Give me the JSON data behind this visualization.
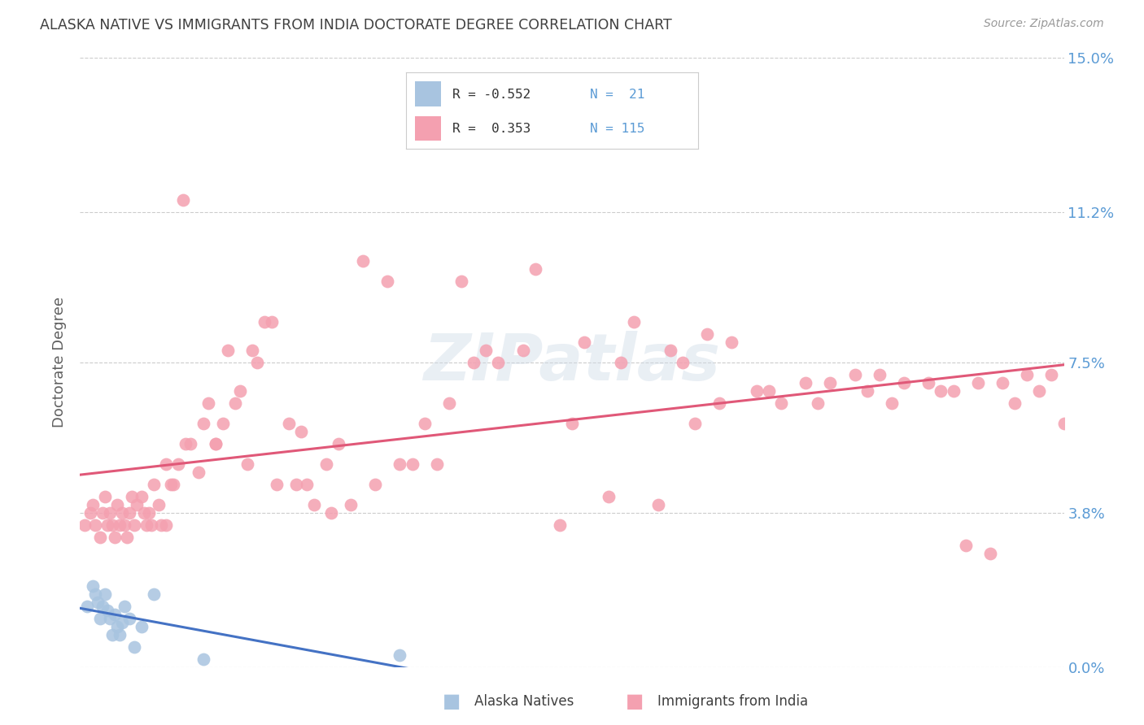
{
  "title": "ALASKA NATIVE VS IMMIGRANTS FROM INDIA DOCTORATE DEGREE CORRELATION CHART",
  "source": "Source: ZipAtlas.com",
  "ylabel": "Doctorate Degree",
  "ytick_values": [
    0.0,
    3.8,
    7.5,
    11.2,
    15.0
  ],
  "ytick_labels": [
    "0.0%",
    "3.8%",
    "7.5%",
    "11.2%",
    "15.0%"
  ],
  "xlim": [
    0.0,
    40.0
  ],
  "ylim": [
    0.0,
    15.0
  ],
  "color_alaska": "#a8c4e0",
  "color_india": "#f4a0b0",
  "color_line_alaska": "#4472c4",
  "color_line_india": "#e05878",
  "color_tick": "#5b9bd5",
  "watermark": "ZIPatlas",
  "alaska_x": [
    0.3,
    0.5,
    0.6,
    0.7,
    0.8,
    0.9,
    1.0,
    1.1,
    1.2,
    1.3,
    1.4,
    1.5,
    1.6,
    1.7,
    1.8,
    2.0,
    2.2,
    2.5,
    3.0,
    5.0,
    13.0
  ],
  "alaska_y": [
    1.5,
    2.0,
    1.8,
    1.6,
    1.2,
    1.5,
    1.8,
    1.4,
    1.2,
    0.8,
    1.3,
    1.0,
    0.8,
    1.1,
    1.5,
    1.2,
    0.5,
    1.0,
    1.8,
    0.2,
    0.3
  ],
  "india_x": [
    0.2,
    0.4,
    0.5,
    0.6,
    0.8,
    0.9,
    1.0,
    1.1,
    1.2,
    1.3,
    1.4,
    1.5,
    1.6,
    1.7,
    1.8,
    1.9,
    2.0,
    2.1,
    2.2,
    2.3,
    2.5,
    2.6,
    2.7,
    2.8,
    2.9,
    3.0,
    3.2,
    3.3,
    3.5,
    3.7,
    3.8,
    4.0,
    4.3,
    4.5,
    4.8,
    5.0,
    5.2,
    5.5,
    5.8,
    6.0,
    6.3,
    6.5,
    7.0,
    7.2,
    7.5,
    8.0,
    8.5,
    9.0,
    9.5,
    10.0,
    10.5,
    11.0,
    12.0,
    13.0,
    14.0,
    15.0,
    16.0,
    17.0,
    18.0,
    20.0,
    22.0,
    24.0,
    25.0,
    26.0,
    28.0,
    30.0,
    32.0,
    33.0,
    35.0,
    36.0,
    37.0,
    38.0,
    39.0,
    40.0,
    15.5,
    18.5,
    20.5,
    22.5,
    24.5,
    26.5,
    28.5,
    30.5,
    32.5,
    34.5,
    36.5,
    38.5,
    5.5,
    7.8,
    9.2,
    11.5,
    13.5,
    16.5,
    19.5,
    21.5,
    23.5,
    25.5,
    27.5,
    29.5,
    31.5,
    33.5,
    35.5,
    37.5,
    39.5,
    6.8,
    8.8,
    10.2,
    12.5,
    14.5,
    4.2,
    3.5
  ],
  "india_y": [
    3.5,
    3.8,
    4.0,
    3.5,
    3.2,
    3.8,
    4.2,
    3.5,
    3.8,
    3.5,
    3.2,
    4.0,
    3.5,
    3.8,
    3.5,
    3.2,
    3.8,
    4.2,
    3.5,
    4.0,
    4.2,
    3.8,
    3.5,
    3.8,
    3.5,
    4.5,
    4.0,
    3.5,
    5.0,
    4.5,
    4.5,
    5.0,
    5.5,
    5.5,
    4.8,
    6.0,
    6.5,
    5.5,
    6.0,
    7.8,
    6.5,
    6.8,
    7.8,
    7.5,
    8.5,
    4.5,
    6.0,
    5.8,
    4.0,
    5.0,
    5.5,
    4.0,
    4.5,
    5.0,
    6.0,
    6.5,
    7.5,
    7.5,
    7.8,
    6.0,
    7.5,
    7.8,
    6.0,
    6.5,
    6.8,
    6.5,
    6.8,
    6.5,
    6.8,
    3.0,
    2.8,
    6.5,
    6.8,
    6.0,
    9.5,
    9.8,
    8.0,
    8.5,
    7.5,
    8.0,
    6.5,
    7.0,
    7.2,
    7.0,
    7.0,
    7.2,
    5.5,
    8.5,
    4.5,
    10.0,
    5.0,
    7.8,
    3.5,
    4.2,
    4.0,
    8.2,
    6.8,
    7.0,
    7.2,
    7.0,
    6.8,
    7.0,
    7.2,
    5.0,
    4.5,
    3.8,
    9.5,
    5.0,
    11.5,
    3.5
  ]
}
